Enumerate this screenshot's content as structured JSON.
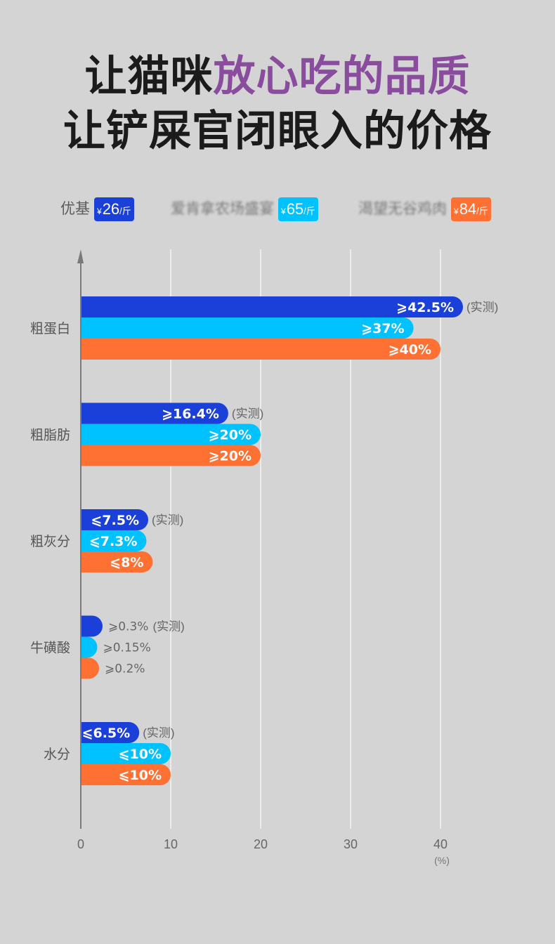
{
  "title": {
    "line1_lead": "让猫咪",
    "line1_accent": "放心吃的品质",
    "line2": "让铲屎官闭眼入的价格"
  },
  "colors": {
    "background": "#d4d4d4",
    "title_text": "#1b1b1b",
    "title_accent": "#8a4d9e"
  },
  "legend": [
    {
      "currency": "¥",
      "price": "26",
      "unit": "/斤"
    },
    {
      "currency": "¥",
      "price": "65",
      "unit": "/斤"
    },
    {
      "currency": "¥",
      "price": "84",
      "unit": "/斤"
    }
  ],
  "chart_data": {
    "type": "bar",
    "orientation": "horizontal",
    "categories": [
      "粗蛋白",
      "粗脂肪",
      "粗灰分",
      "牛磺酸",
      "水分"
    ],
    "series": [
      {
        "name": "优基",
        "color": "#1b40d9",
        "values": [
          42.5,
          16.4,
          7.5,
          0.3,
          6.5
        ],
        "labels": [
          "⩾42.5%",
          "⩾16.4%",
          "⩽7.5%",
          "⩾0.3%",
          "⩽6.5%"
        ],
        "note": "(实测)"
      },
      {
        "name": "爱肯拿农场盛宴",
        "color": "#00c2ff",
        "values": [
          37,
          20,
          7.3,
          0.15,
          10
        ],
        "labels": [
          "⩾37%",
          "⩾20%",
          "⩽7.3%",
          "⩾0.15%",
          "⩽10%"
        ]
      },
      {
        "name": "渴望无谷鸡肉",
        "color": "#ff7033",
        "values": [
          40,
          20,
          8,
          0.2,
          10
        ],
        "labels": [
          "⩾40%",
          "⩾20%",
          "⩽8%",
          "⩾0.2%",
          "⩽10%"
        ]
      }
    ],
    "xticks": [
      0,
      10,
      20,
      30,
      40
    ],
    "xunit": "(%)",
    "grid": true,
    "legend_position": "top"
  }
}
